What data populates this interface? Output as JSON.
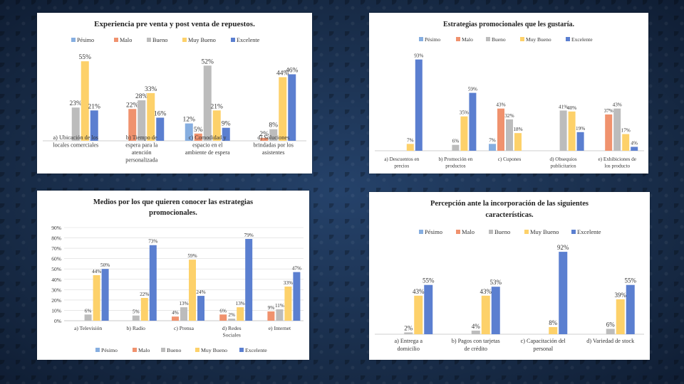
{
  "colors": {
    "Pesimo": "#86aee0",
    "Malo": "#f0926e",
    "Bueno": "#bcbcbc",
    "Muy Bueno": "#fdd16a",
    "Excelente": "#5b7fd0"
  },
  "chart_data": [
    {
      "type": "bar",
      "title": [
        "Experiencia  pre venta y post venta de repuestos."
      ],
      "legend": [
        "Pésimo",
        "Malo",
        "Bueno",
        "Muy Bueno",
        "Excelente"
      ],
      "categories": [
        [
          "a) Ubicación de los",
          "locales comerciales"
        ],
        [
          "b) Tiempo de",
          "espera para la",
          "atención",
          "personalizada"
        ],
        [
          "c) Comodidad y",
          "espacio en el",
          "ambiente de espera"
        ],
        [
          "d) Soluciones",
          "brindadas por los",
          "asistentes"
        ]
      ],
      "series": [
        {
          "name": "Pésimo",
          "values": [
            null,
            null,
            12,
            null
          ]
        },
        {
          "name": "Malo",
          "values": [
            null,
            22,
            5,
            2
          ]
        },
        {
          "name": "Bueno",
          "values": [
            23,
            28,
            52,
            8
          ]
        },
        {
          "name": "Muy Bueno",
          "values": [
            55,
            33,
            21,
            44
          ]
        },
        {
          "name": "Excelente",
          "values": [
            21,
            16,
            9,
            46
          ]
        }
      ],
      "ylim": [
        0,
        60
      ],
      "show_axis": false
    },
    {
      "type": "bar",
      "title": [
        "Estrategias promocionales  que les gustaría."
      ],
      "legend": [
        "Pésimo",
        "Malo",
        "Bueno",
        "Muy Bueno",
        "Excelente"
      ],
      "categories": [
        [
          "a) Descuentos en",
          "precios"
        ],
        [
          "b) Promoción en",
          "productos"
        ],
        [
          "c) Cupones"
        ],
        [
          "d) Obsequios",
          "publicitarios"
        ],
        [
          "e) Exhibiciones de",
          "los producto"
        ]
      ],
      "series": [
        {
          "name": "Pésimo",
          "values": [
            null,
            null,
            7,
            null,
            null
          ]
        },
        {
          "name": "Malo",
          "values": [
            null,
            null,
            43,
            null,
            37
          ]
        },
        {
          "name": "Bueno",
          "values": [
            null,
            6,
            32,
            41,
            43
          ]
        },
        {
          "name": "Muy Bueno",
          "values": [
            7,
            35,
            18,
            40,
            17
          ]
        },
        {
          "name": "Excelente",
          "values": [
            93,
            59,
            null,
            19,
            4
          ]
        }
      ],
      "ylim": [
        0,
        100
      ],
      "show_axis": false
    },
    {
      "type": "bar",
      "title": [
        "Medios por los que quieren conocer las estrategias",
        "promocionales."
      ],
      "legend": [
        "Pésimo",
        "Malo",
        "Bueno",
        "Muy Bueno",
        "Excelente"
      ],
      "categories": [
        [
          "a) Televisión"
        ],
        [
          "b) Radio"
        ],
        [
          "c) Prensa"
        ],
        [
          "d) Redes",
          "Sociales"
        ],
        [
          "e) Internet"
        ]
      ],
      "series": [
        {
          "name": "Pésimo",
          "values": [
            null,
            null,
            null,
            null,
            null
          ]
        },
        {
          "name": "Malo",
          "values": [
            null,
            null,
            4,
            6,
            9
          ]
        },
        {
          "name": "Bueno",
          "values": [
            6,
            5,
            13,
            2,
            11
          ]
        },
        {
          "name": "Muy Bueno",
          "values": [
            44,
            22,
            59,
            13,
            33
          ]
        },
        {
          "name": "Excelente",
          "values": [
            50,
            73,
            24,
            79,
            47
          ]
        }
      ],
      "yticks": [
        "0%",
        "10%",
        "20%",
        "30%",
        "40%",
        "50%",
        "60%",
        "70%",
        "80%",
        "90%"
      ],
      "ylim": [
        0,
        90
      ],
      "show_axis": true,
      "grid": true
    },
    {
      "type": "bar",
      "title": [
        "Percepción  ante  la incorporación  de las siguientes",
        "características."
      ],
      "legend": [
        "Pésimo",
        "Malo",
        "Bueno",
        "Muy Bueno",
        "Excelente"
      ],
      "categories": [
        [
          "a) Entrega a",
          "domicilio"
        ],
        [
          "b) Pagos con tarjetas",
          "de crédito"
        ],
        [
          "c) Capacitación del",
          "personal"
        ],
        [
          "d) Variedad de stock"
        ]
      ],
      "series": [
        {
          "name": "Pésimo",
          "values": [
            null,
            null,
            null,
            null
          ]
        },
        {
          "name": "Malo",
          "values": [
            null,
            null,
            null,
            null
          ]
        },
        {
          "name": "Bueno",
          "values": [
            2,
            4,
            null,
            6
          ]
        },
        {
          "name": "Muy Bueno",
          "values": [
            43,
            43,
            8,
            39
          ]
        },
        {
          "name": "Excelente",
          "values": [
            55,
            53,
            92,
            55
          ]
        }
      ],
      "ylim": [
        0,
        100
      ],
      "show_axis": false
    }
  ]
}
